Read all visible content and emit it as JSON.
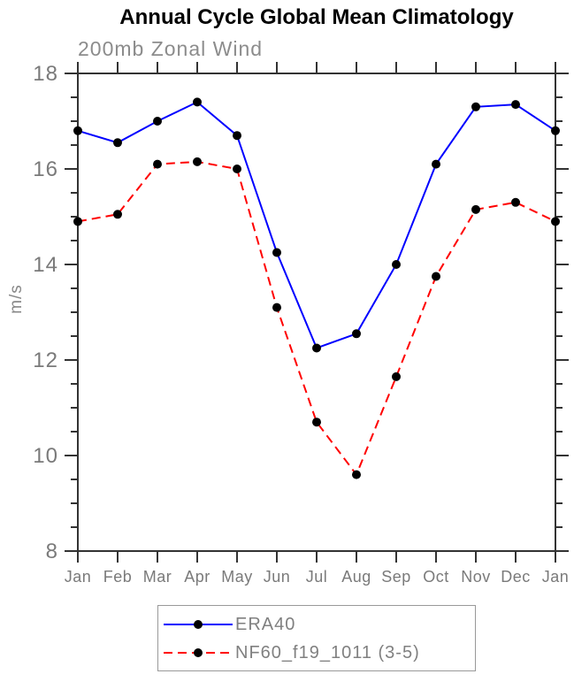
{
  "page": {
    "title": "Annual Cycle Global Mean Climatology",
    "subtitle": "200mb Zonal Wind"
  },
  "chart_data": {
    "type": "line",
    "title": "Annual Cycle Global Mean Climatology",
    "subtitle": "200mb Zonal Wind",
    "xlabel": "",
    "ylabel": "m/s",
    "x_categories": [
      "Jan",
      "Feb",
      "Mar",
      "Apr",
      "May",
      "Jun",
      "Jul",
      "Aug",
      "Sep",
      "Oct",
      "Nov",
      "Dec",
      "Jan"
    ],
    "ylim": [
      8,
      18
    ],
    "y_major_ticks": [
      8,
      10,
      12,
      14,
      16,
      18
    ],
    "y_minor_step": 0.5,
    "grid": false,
    "legend_position": "bottom",
    "series": [
      {
        "name": "ERA40",
        "line_style": "solid",
        "color": "#0000ff",
        "marker": "circle",
        "marker_color": "#000000",
        "values": [
          16.8,
          16.55,
          17.0,
          17.4,
          16.7,
          14.25,
          12.25,
          12.55,
          14.0,
          16.1,
          17.3,
          17.35,
          16.8
        ]
      },
      {
        "name": "NF60_f19_1011 (3-5)",
        "line_style": "dashed",
        "color": "#ff0000",
        "marker": "circle",
        "marker_color": "#000000",
        "values": [
          14.9,
          15.05,
          16.1,
          16.15,
          16.0,
          13.1,
          10.7,
          9.6,
          11.65,
          13.75,
          15.15,
          15.3,
          14.9
        ]
      }
    ]
  },
  "colors": {
    "background": "#ffffff",
    "title": "#000000",
    "subtitle": "#8c8c8c",
    "axis": "#333333",
    "tick_label": "#7a7a7a",
    "legend_text": "#808080",
    "legend_border": "#999999"
  }
}
